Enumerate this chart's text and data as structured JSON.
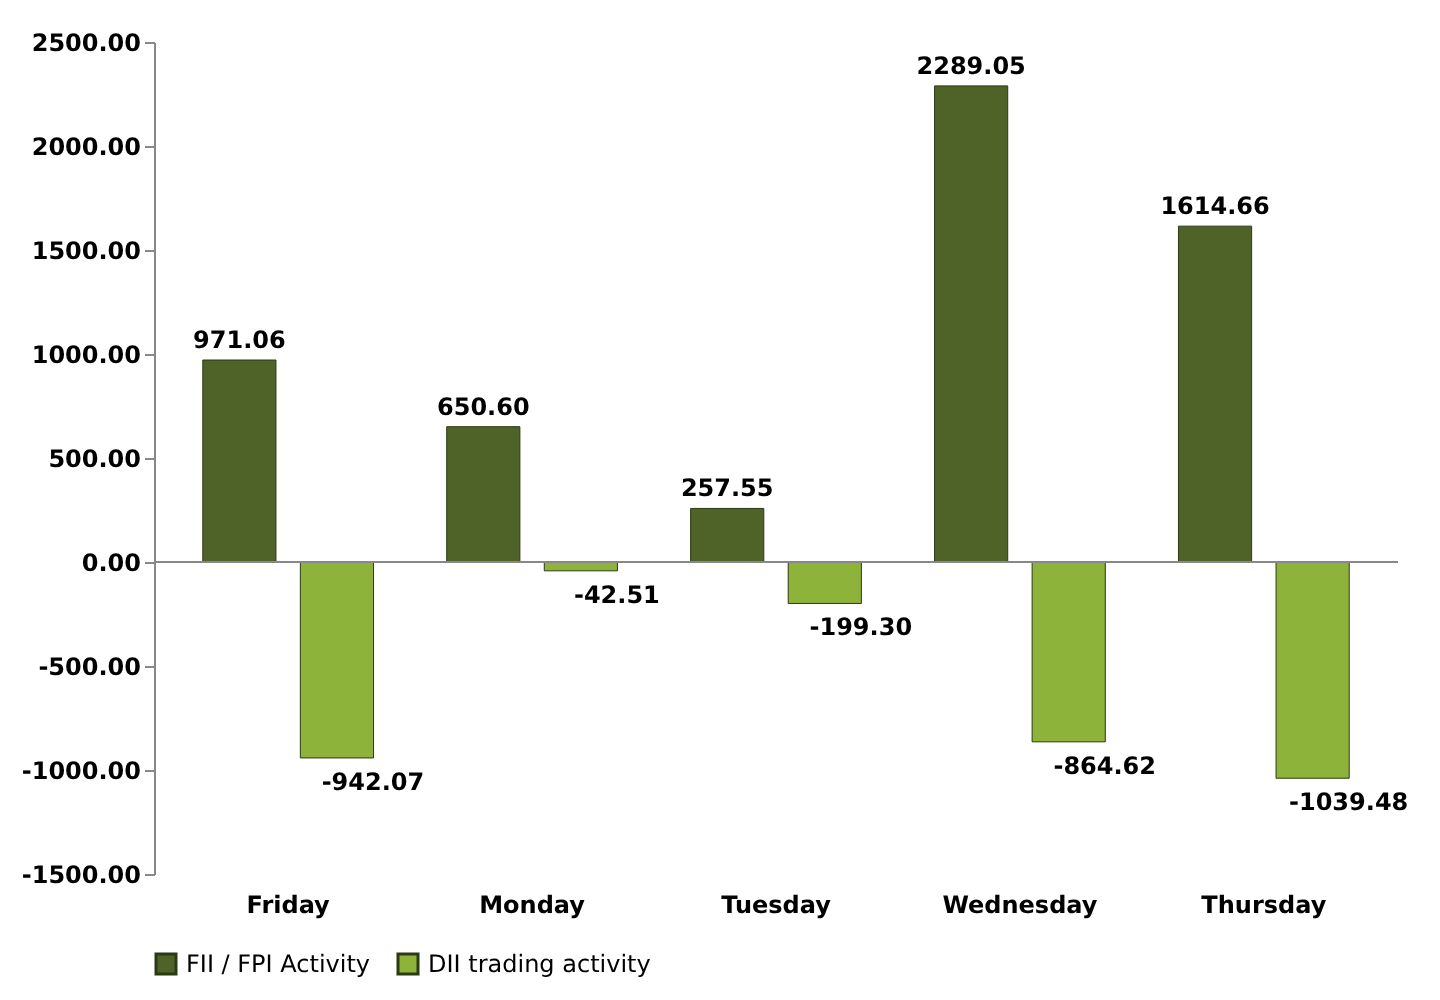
{
  "chart_data": {
    "type": "bar",
    "categories": [
      "Friday",
      "Monday",
      "Tuesday",
      "Wednesday",
      "Thursday"
    ],
    "series": [
      {
        "name": "FII / FPI Activity",
        "color": "#4f6228",
        "values": [
          971.06,
          650.6,
          257.55,
          2289.05,
          1614.66
        ],
        "value_labels": [
          "971.06",
          "650.60",
          "257.55",
          "2289.05",
          "1614.66"
        ]
      },
      {
        "name": "DII trading activity",
        "color": "#8db33a",
        "values": [
          -942.07,
          -42.51,
          -199.3,
          -864.62,
          -1039.48
        ],
        "value_labels": [
          "-942.07",
          "-42.51",
          "-199.30",
          "-864.62",
          "-1039.48"
        ]
      }
    ],
    "ylim": [
      -1500,
      2500
    ],
    "yticks": [
      {
        "value": -1500,
        "label": "-1500.00"
      },
      {
        "value": -1000,
        "label": "-1000.00"
      },
      {
        "value": -500,
        "label": "-500.00"
      },
      {
        "value": 0,
        "label": "0.00"
      },
      {
        "value": 500,
        "label": "500.00"
      },
      {
        "value": 1000,
        "label": "1000.00"
      },
      {
        "value": 1500,
        "label": "1500.00"
      },
      {
        "value": 2000,
        "label": "2000.00"
      },
      {
        "value": 2500,
        "label": "2500.00"
      }
    ],
    "grid": false,
    "ref_lines": [
      {
        "axis": "y",
        "value": 0,
        "color": "#888888"
      }
    ],
    "legend": "bottom"
  }
}
